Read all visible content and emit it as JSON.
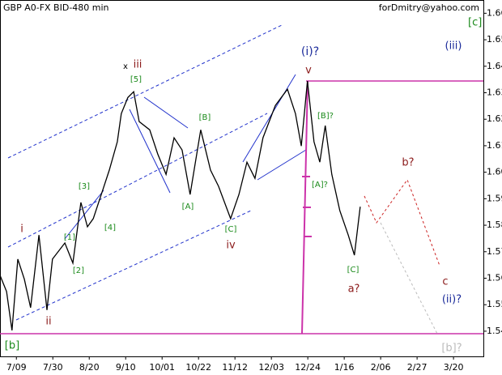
{
  "chart_data": {
    "type": "line",
    "title": "GBP A0-FX BID-480 min",
    "subtitle": "forDmitry@yahoo.com",
    "x": [
      0,
      1.8,
      3.3,
      4.9,
      6.7,
      8.4,
      10.7,
      12.9,
      14.4,
      17.8,
      20,
      22.2,
      24,
      25.6,
      27.8,
      30,
      32.2,
      33.3,
      35.1,
      36.7,
      38.2,
      41.1,
      43.3,
      45.6,
      47.8,
      50,
      52.2,
      55.1,
      57.8,
      60,
      63.3,
      65.6,
      67.8,
      70,
      72.2,
      75.6,
      78.9,
      81.1,
      82.7,
      84.4,
      86.2,
      87.8,
      89.3,
      91.1,
      93.3,
      95.6,
      97.3,
      98.9
    ],
    "values": [
      1.5611,
      1.555,
      1.5403,
      1.5672,
      1.5596,
      1.5489,
      1.5763,
      1.548,
      1.5672,
      1.5733,
      1.5657,
      1.5886,
      1.5794,
      1.5825,
      1.5916,
      1.6008,
      1.6115,
      1.6221,
      1.6282,
      1.6304,
      1.6191,
      1.616,
      1.6069,
      1.5992,
      1.613,
      1.6084,
      1.5916,
      1.616,
      1.6008,
      1.5947,
      1.5825,
      1.5916,
      1.6038,
      1.5977,
      1.613,
      1.6252,
      1.6313,
      1.6221,
      1.6099,
      1.6344,
      1.6115,
      1.6038,
      1.6176,
      1.5992,
      1.5855,
      1.5763,
      1.5687,
      1.587
    ],
    "color": "#000000",
    "xlim": [
      0,
      132.7
    ],
    "xticks": [
      {
        "value": 4.5,
        "label": "7/09"
      },
      {
        "value": 14.5,
        "label": "7/30"
      },
      {
        "value": 24.5,
        "label": "8/20"
      },
      {
        "value": 34.5,
        "label": "9/10"
      },
      {
        "value": 44.5,
        "label": "10/01"
      },
      {
        "value": 54.5,
        "label": "10/22"
      },
      {
        "value": 64.5,
        "label": "11/12"
      },
      {
        "value": 74.5,
        "label": "12/03"
      },
      {
        "value": 84.5,
        "label": "12/24"
      },
      {
        "value": 94.5,
        "label": "1/16"
      },
      {
        "value": 104.5,
        "label": "2/06"
      },
      {
        "value": 114.5,
        "label": "2/27"
      },
      {
        "value": 124.5,
        "label": "3/20"
      }
    ],
    "ylim": [
      1.5305,
      1.665
    ],
    "yticks": [
      {
        "value": 1.54,
        "label": "1.540"
      },
      {
        "value": 1.55,
        "label": "1.550"
      },
      {
        "value": 1.56,
        "label": "1.560"
      },
      {
        "value": 1.57,
        "label": "1.570"
      },
      {
        "value": 1.58,
        "label": "1.580"
      },
      {
        "value": 1.59,
        "label": "1.590"
      },
      {
        "value": 1.6,
        "label": "1.600"
      },
      {
        "value": 1.61,
        "label": "1.610"
      },
      {
        "value": 1.62,
        "label": "1.620"
      },
      {
        "value": 1.63,
        "label": "1.630"
      },
      {
        "value": 1.64,
        "label": "1.640"
      },
      {
        "value": 1.65,
        "label": "1.650"
      },
      {
        "value": 1.66,
        "label": "1.660"
      }
    ],
    "annotations": [
      "[c]",
      "(iii)",
      "x",
      "iii",
      "[5]",
      "(i)?",
      "v",
      "[B]?",
      "[B]",
      "[A]",
      "[A]?",
      "[3]",
      "[4]",
      "[1]",
      "[2]",
      "i",
      "ii",
      "[C]",
      "iv",
      "b?",
      "c",
      "(ii)?",
      "[C]",
      "a?",
      "[b]",
      "[b]?"
    ]
  }
}
